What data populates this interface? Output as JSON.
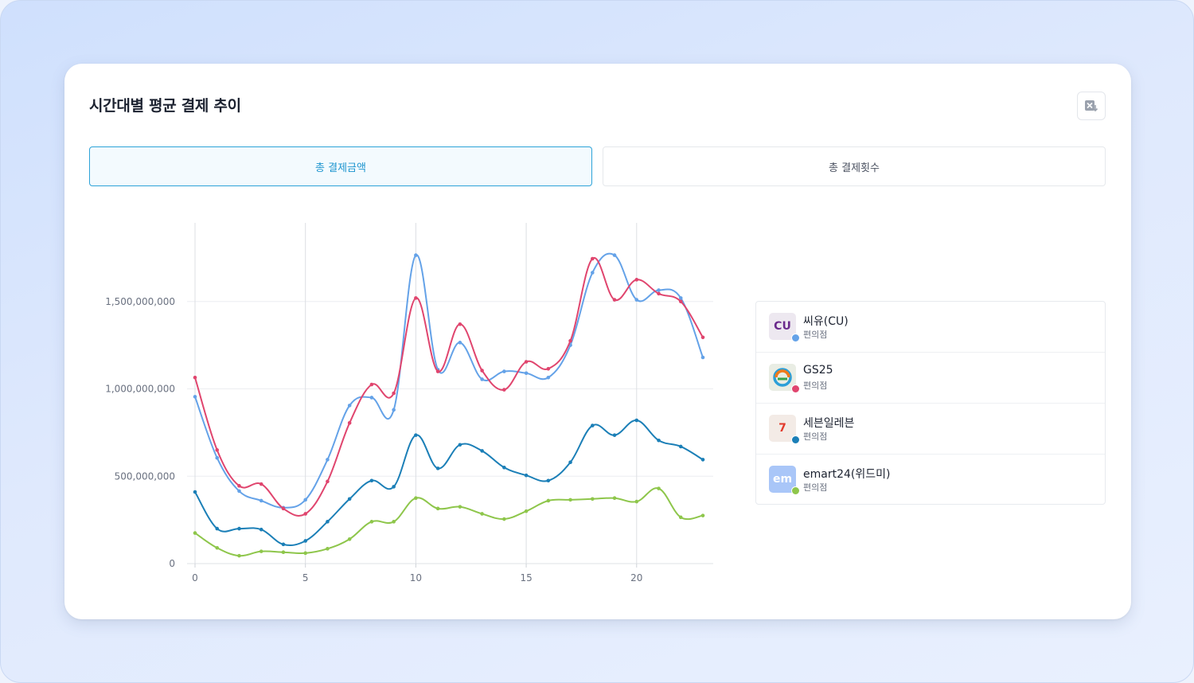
{
  "title": "시간대별 평균 결제 추이",
  "tabs": {
    "amount": "총 결제금액",
    "count": "총 결제횟수"
  },
  "chart_data": {
    "type": "line",
    "x": [
      0,
      1,
      2,
      3,
      4,
      5,
      6,
      7,
      8,
      9,
      10,
      11,
      12,
      13,
      14,
      15,
      16,
      17,
      18,
      19,
      20,
      21,
      22,
      23
    ],
    "x_ticks": [
      "0",
      "5",
      "10",
      "15",
      "20"
    ],
    "y_ticks": [
      "0",
      "500,000,000",
      "1,000,000,000",
      "1,500,000,000"
    ],
    "ylim": [
      0,
      1950000000
    ],
    "series": [
      {
        "name": "씨유(CU)",
        "color": "#64a2e8",
        "values": [
          955000000,
          605000000,
          415000000,
          360000000,
          320000000,
          365000000,
          595000000,
          905000000,
          950000000,
          880000000,
          1765000000,
          1110000000,
          1265000000,
          1055000000,
          1100000000,
          1090000000,
          1065000000,
          1250000000,
          1665000000,
          1765000000,
          1510000000,
          1565000000,
          1520000000,
          1180000000
        ]
      },
      {
        "name": "GS25",
        "color": "#e0456e",
        "values": [
          1065000000,
          650000000,
          445000000,
          455000000,
          315000000,
          285000000,
          470000000,
          805000000,
          1025000000,
          975000000,
          1520000000,
          1100000000,
          1370000000,
          1105000000,
          995000000,
          1155000000,
          1115000000,
          1275000000,
          1745000000,
          1510000000,
          1625000000,
          1545000000,
          1500000000,
          1295000000
        ]
      },
      {
        "name": "세븐일레븐",
        "color": "#1b7fb7",
        "values": [
          410000000,
          200000000,
          200000000,
          195000000,
          110000000,
          130000000,
          240000000,
          370000000,
          475000000,
          440000000,
          735000000,
          545000000,
          680000000,
          645000000,
          550000000,
          505000000,
          475000000,
          580000000,
          790000000,
          735000000,
          820000000,
          705000000,
          670000000,
          595000000
        ]
      },
      {
        "name": "emart24(위드미)",
        "color": "#8ec64b",
        "values": [
          175000000,
          90000000,
          45000000,
          70000000,
          65000000,
          60000000,
          85000000,
          140000000,
          240000000,
          240000000,
          375000000,
          315000000,
          325000000,
          285000000,
          255000000,
          300000000,
          360000000,
          365000000,
          370000000,
          375000000,
          355000000,
          430000000,
          265000000,
          275000000
        ]
      }
    ]
  },
  "legend": [
    {
      "name": "씨유(CU)",
      "category": "편의점",
      "logo_text": "CU",
      "logo_bg": "#ede8f0",
      "logo_color": "#6a2a8c",
      "dot": "#64a2e8"
    },
    {
      "name": "GS25",
      "category": "편의점",
      "logo_text": "",
      "logo_bg": "#e9ede4",
      "logo_color": "#3a9a3a",
      "dot": "#e0456e"
    },
    {
      "name": "세븐일레븐",
      "category": "편의점",
      "logo_text": "7",
      "logo_bg": "#f3ebe6",
      "logo_color": "#e23a2c",
      "dot": "#1b7fb7"
    },
    {
      "name": "emart24(위드미)",
      "category": "편의점",
      "logo_text": "em",
      "logo_bg": "#a9c6f8",
      "logo_color": "#ffffff",
      "dot": "#8ec64b"
    }
  ]
}
